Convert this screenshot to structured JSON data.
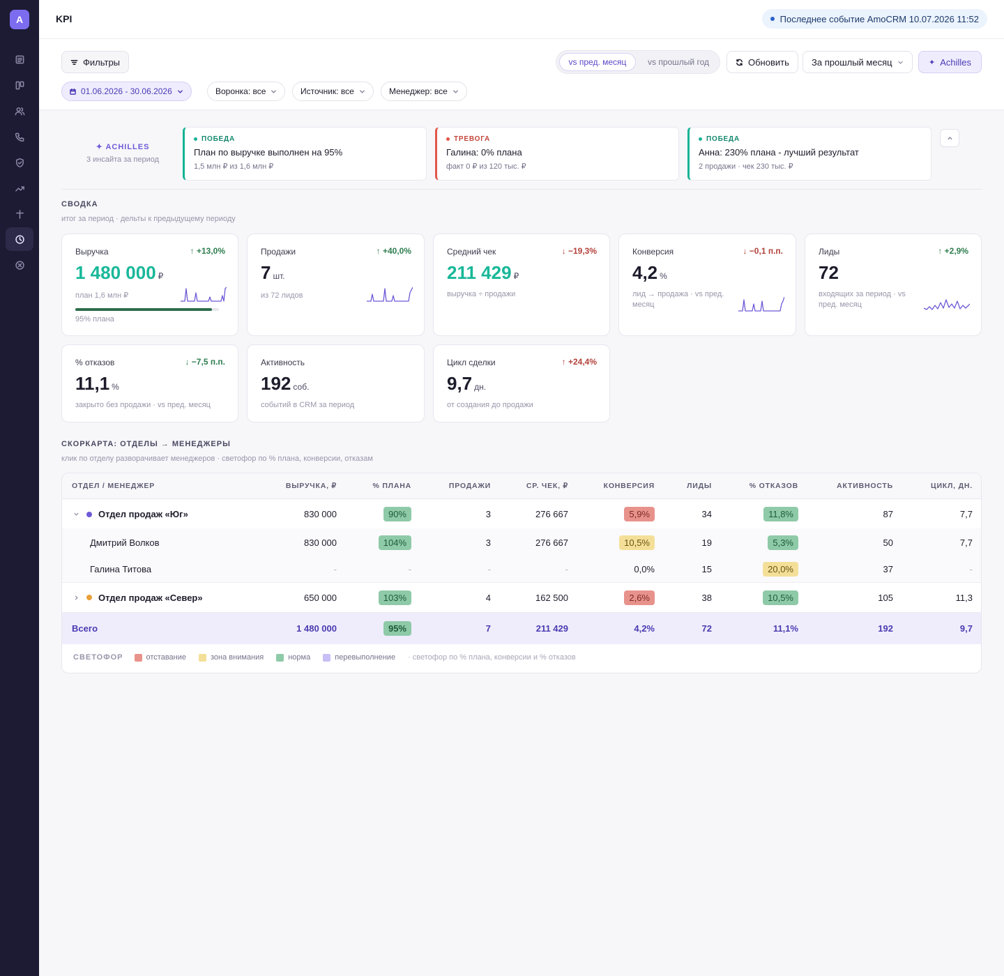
{
  "app": {
    "logo": "A",
    "title": "KPI"
  },
  "sidebar": {
    "icons": [
      "document-icon",
      "board-icon",
      "users-icon",
      "phone-icon",
      "shield-icon",
      "trend-icon",
      "pin-icon",
      "clock-icon",
      "close-circle-icon"
    ],
    "active": "clock-icon"
  },
  "header": {
    "event_text": "Последнее событие AmoCRM 10.07.2026 11:52"
  },
  "toolbar": {
    "filters_label": "Фильтры",
    "compare": {
      "options": [
        "vs пред. месяц",
        "vs прошлый год"
      ],
      "selected": "vs пред. месяц"
    },
    "refresh_label": "Обновить",
    "period_label": "За прошлый месяц",
    "achilles_label": "Achilles",
    "chips": {
      "date": "01.06.2026 - 30.06.2026",
      "funnel": "Воронка: все",
      "source": "Источник: все",
      "manager": "Менеджер: все"
    }
  },
  "insights": {
    "title": "ACHILLES",
    "subtitle": "3 инсайта за период",
    "cards": [
      {
        "tag": "ПОБЕДА",
        "kind": "win",
        "headline": "План по выручке выполнен на 95%",
        "detail": "1,5 млн ₽ из 1,6 млн ₽"
      },
      {
        "tag": "ТРЕВОГА",
        "kind": "alarm",
        "headline": "Галина: 0% плана",
        "detail": "факт 0 ₽ из 120 тыс. ₽"
      },
      {
        "tag": "ПОБЕДА",
        "kind": "win",
        "headline": "Анна: 230% плана - лучший результат",
        "detail": "2 продажи · чек 230 тыс. ₽"
      }
    ]
  },
  "summary": {
    "title": "СВОДКА",
    "subtitle": "итог за период · дельты к предыдущему периоду",
    "cards": [
      {
        "label": "Выручка",
        "delta": "↑ +13,0%",
        "value": "1 480 000",
        "unit": "₽",
        "note": "план 1,6 млн ₽",
        "progress_label": "95% плана",
        "progress": 0.95
      },
      {
        "label": "Продажи",
        "delta": "↑ +40,0%",
        "value": "7",
        "unit": "шт.",
        "note": "из 72 лидов"
      },
      {
        "label": "Средний чек",
        "delta": "↓ −19,3%",
        "value": "211 429",
        "unit": "₽",
        "note": "выручка ÷ продажи"
      },
      {
        "label": "Конверсия",
        "delta": "↓ −0,1 п.п.",
        "value": "4,2",
        "unit": "%",
        "note": "лид → продажа · vs пред. месяц"
      },
      {
        "label": "Лиды",
        "delta": "↑ +2,9%",
        "value": "72",
        "unit": "",
        "note": "входящих за период · vs пред. месяц"
      },
      {
        "label": "% отказов",
        "delta": "↓ −7,5 п.п.",
        "value": "11,1",
        "unit": "%",
        "note": "закрыто без продажи · vs пред. месяц"
      },
      {
        "label": "Активность",
        "delta": "",
        "value": "192",
        "unit": "соб.",
        "note": "событий в CRM за период"
      },
      {
        "label": "Цикл сделки",
        "delta": "↑ +24,4%",
        "value": "9,7",
        "unit": "дн.",
        "note": "от создания до продажи"
      }
    ]
  },
  "scorecard": {
    "title": "СКОРКАРТА: ОТДЕЛЫ → МЕНЕДЖЕРЫ",
    "subtitle": "клик по отделу разворачивает менеджеров · светофор по % плана, конверсии, отказам",
    "columns": [
      "ОТДЕЛ / МЕНЕДЖЕР",
      "ВЫРУЧКА, ₽",
      "% ПЛАНА",
      "ПРОДАЖИ",
      "СР. ЧЕК, ₽",
      "КОНВЕРСИЯ",
      "ЛИДЫ",
      "% ОТКАЗОВ",
      "АКТИВНОСТЬ",
      "ЦИКЛ, ДН."
    ],
    "rows": [
      {
        "type": "dept",
        "name": "Отдел продаж «Юг»",
        "color": "#6d5ad6",
        "expanded": true,
        "revenue": "830 000",
        "plan": "90%",
        "plan_status": "green",
        "sales": "3",
        "avg": "276 667",
        "conv": "5,9%",
        "conv_status": "red",
        "leads": "34",
        "refusals": "11,8%",
        "ref_status": "green",
        "activity": "87",
        "cycle": "7,7"
      },
      {
        "type": "mgr",
        "name": "Дмитрий Волков",
        "revenue": "830 000",
        "plan": "104%",
        "plan_status": "green",
        "sales": "3",
        "avg": "276 667",
        "conv": "10,5%",
        "conv_status": "yellow",
        "leads": "19",
        "refusals": "5,3%",
        "ref_status": "green",
        "activity": "50",
        "cycle": "7,7"
      },
      {
        "type": "mgr",
        "name": "Галина Титова",
        "revenue": "-",
        "plan": "-",
        "plan_status": "",
        "sales": "-",
        "avg": "-",
        "conv": "0,0%",
        "conv_status": "",
        "leads": "15",
        "refusals": "20,0%",
        "ref_status": "yellow",
        "activity": "37",
        "cycle": "-"
      },
      {
        "type": "dept",
        "name": "Отдел продаж «Север»",
        "color": "#e8a13a",
        "expanded": false,
        "revenue": "650 000",
        "plan": "103%",
        "plan_status": "green",
        "sales": "4",
        "avg": "162 500",
        "conv": "2,6%",
        "conv_status": "red",
        "leads": "38",
        "refusals": "10,5%",
        "ref_status": "green",
        "activity": "105",
        "cycle": "11,3"
      },
      {
        "type": "total",
        "name": "Всего",
        "revenue": "1 480 000",
        "plan": "95%",
        "plan_status": "green",
        "sales": "7",
        "avg": "211 429",
        "conv": "4,2%",
        "conv_status": "",
        "leads": "72",
        "refusals": "11,1%",
        "ref_status": "",
        "activity": "192",
        "cycle": "9,7"
      }
    ],
    "legend": {
      "title": "СВЕТОФОР",
      "items": [
        {
          "label": "отставание",
          "color": "#e8928c"
        },
        {
          "label": "зона внимания",
          "color": "#f4df99"
        },
        {
          "label": "норма",
          "color": "#8fcaa8"
        },
        {
          "label": "перевыполнение",
          "color": "#c7bff5"
        }
      ],
      "note": "· светофор по % плана, конверсии и % отказов"
    }
  }
}
